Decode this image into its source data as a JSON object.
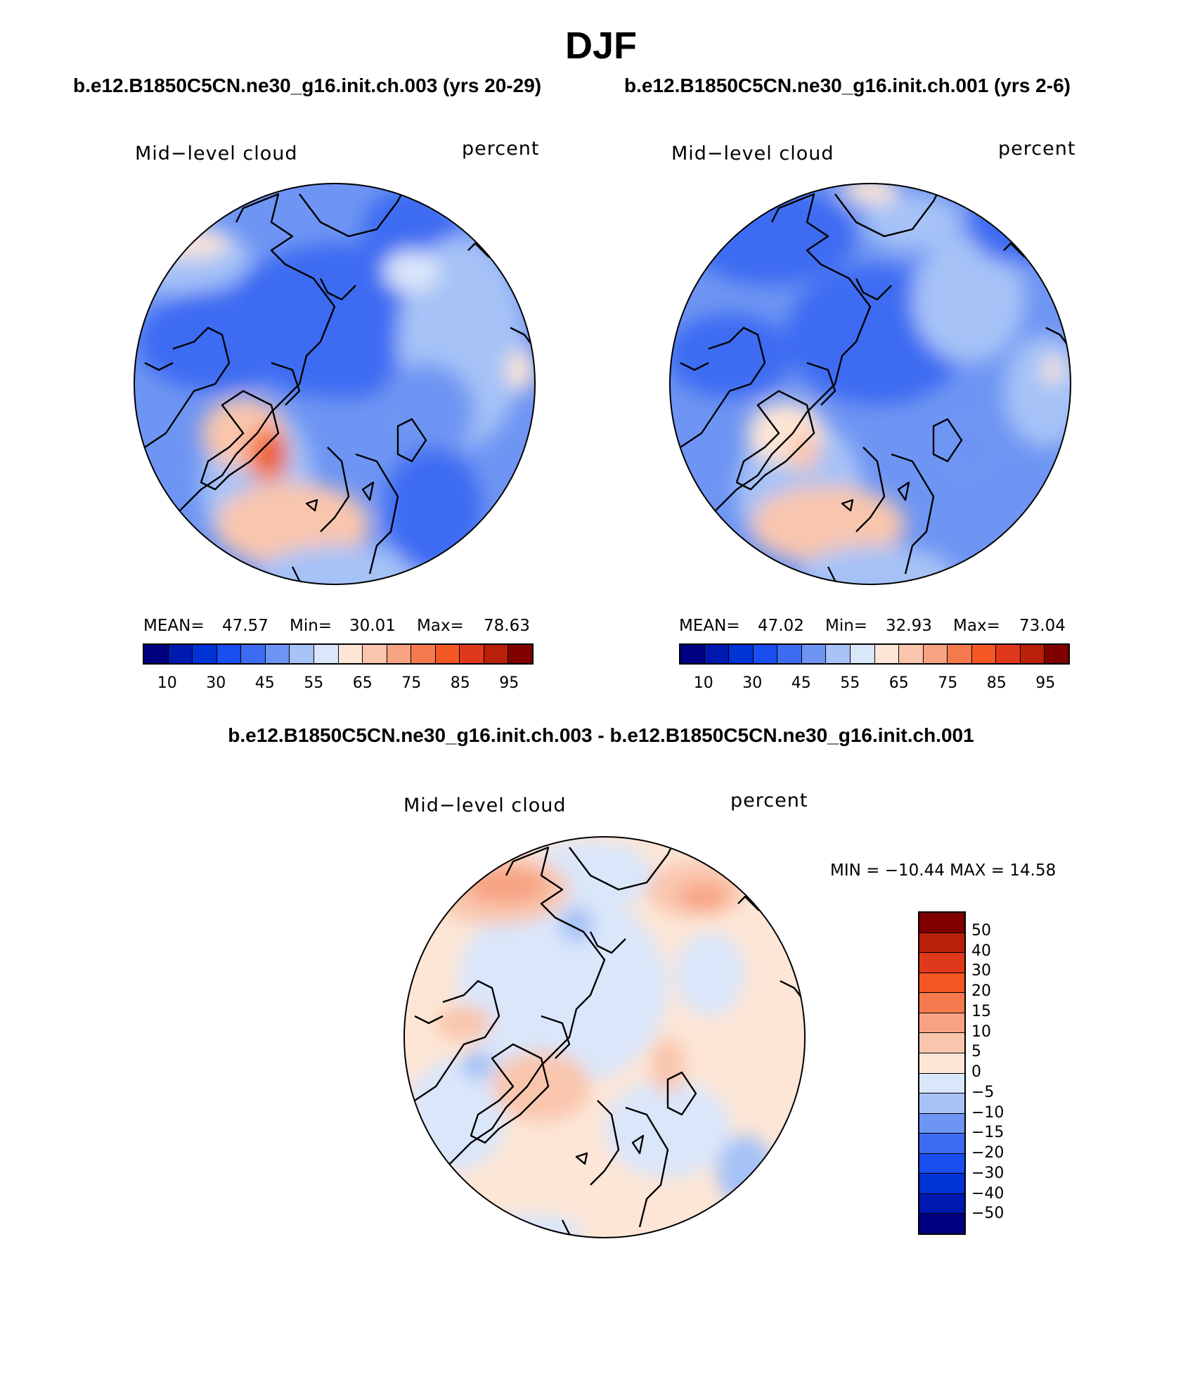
{
  "figure": {
    "title": "DJF",
    "case1_title": "b.e12.B1850C5CN.ne30_g16.init.ch.003 (yrs 20-29)",
    "case2_title": "b.e12.B1850C5CN.ne30_g16.init.ch.001 (yrs 2-6)",
    "diff_title": "b.e12.B1850C5CN.ne30_g16.init.ch.003 - b.e12.B1850C5CN.ne30_g16.init.ch.001"
  },
  "colors": {
    "abs_scale": [
      "#000080",
      "#0019b0",
      "#0033d6",
      "#1a4ef0",
      "#3d6cf2",
      "#6e95f3",
      "#a6c2f7",
      "#dae6fa",
      "#fde6d6",
      "#f9c6ad",
      "#f7a383",
      "#f57b4f",
      "#f55723",
      "#e0381a",
      "#b82008",
      "#800000"
    ],
    "diff_scale": [
      "#800000",
      "#b82008",
      "#e0381a",
      "#f55723",
      "#f57b4f",
      "#f7a383",
      "#f9c6ad",
      "#fde6d6",
      "#dae6fa",
      "#a6c2f7",
      "#6e95f3",
      "#3d6cf2",
      "#1a4ef0",
      "#0033d6",
      "#0019b0",
      "#000080"
    ]
  },
  "chart_data": [
    {
      "type": "heatmap",
      "projection": "north polar stereographic",
      "title": "b.e12.B1850C5CN.ne30_g16.init.ch.003 (yrs 20-29)",
      "variable": "Mid−level cloud",
      "units": "percent",
      "stats": {
        "mean_label": "MEAN=",
        "mean": "47.57",
        "min_label": "Min=",
        "min": "30.01",
        "max_label": "Max=",
        "max": "78.63"
      },
      "colorbar_ticks": [
        "10",
        "30",
        "45",
        "55",
        "65",
        "75",
        "85",
        "95"
      ],
      "contour_levels": [
        5,
        10,
        20,
        30,
        40,
        45,
        50,
        55,
        60,
        65,
        70,
        75,
        80,
        85,
        90,
        95
      ]
    },
    {
      "type": "heatmap",
      "projection": "north polar stereographic",
      "title": "b.e12.B1850C5CN.ne30_g16.init.ch.001 (yrs 2-6)",
      "variable": "Mid−level cloud",
      "units": "percent",
      "stats": {
        "mean_label": "MEAN=",
        "mean": "47.02",
        "min_label": "Min=",
        "min": "32.93",
        "max_label": "Max=",
        "max": "73.04"
      },
      "colorbar_ticks": [
        "10",
        "30",
        "45",
        "55",
        "65",
        "75",
        "85",
        "95"
      ],
      "contour_levels": [
        5,
        10,
        20,
        30,
        40,
        45,
        50,
        55,
        60,
        65,
        70,
        75,
        80,
        85,
        90,
        95
      ]
    },
    {
      "type": "heatmap",
      "projection": "north polar stereographic",
      "title": "b.e12.B1850C5CN.ne30_g16.init.ch.003 - b.e12.B1850C5CN.ne30_g16.init.ch.001",
      "variable": "Mid−level cloud",
      "units": "percent",
      "stats_text": "MIN = −10.44 MAX =   14.58",
      "min": -10.44,
      "max": 14.58,
      "colorbar_ticks": [
        "50",
        "40",
        "30",
        "20",
        "15",
        "10",
        "5",
        "0",
        "−5",
        "−10",
        "−15",
        "−20",
        "−30",
        "−40",
        "−50"
      ]
    }
  ]
}
